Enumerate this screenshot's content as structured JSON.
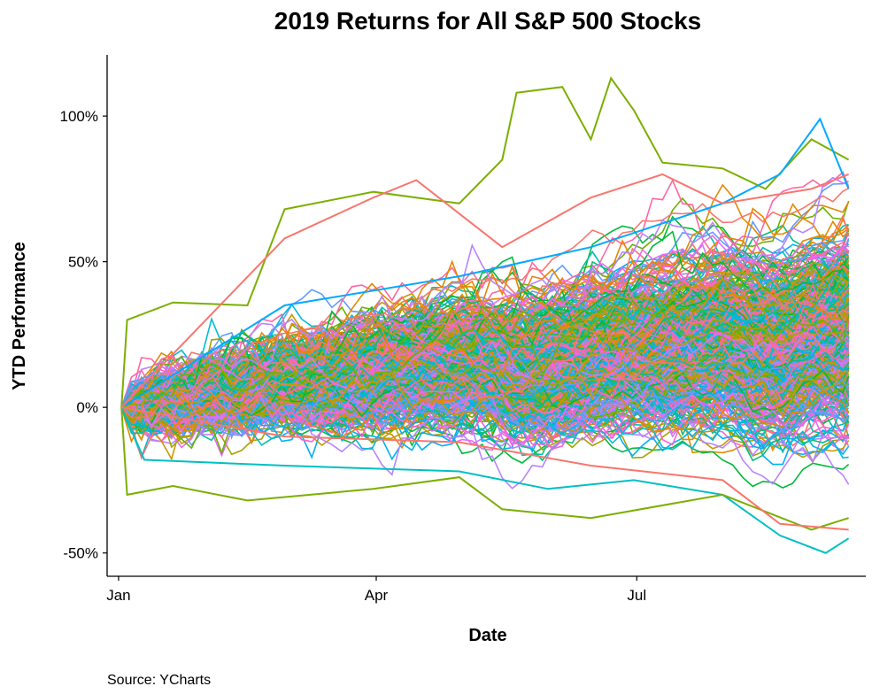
{
  "chart_data": {
    "type": "line",
    "title": "2019 Returns for All S&P 500 Stocks",
    "xlabel": "Date",
    "ylabel": "YTD Performance",
    "x_ticks": [
      "Jan",
      "Apr",
      "Jul"
    ],
    "x_tick_dates": [
      "2019-01-01",
      "2019-04-01",
      "2019-07-01"
    ],
    "y_ticks": [
      "-50%",
      "0%",
      "50%",
      "100%"
    ],
    "y_tick_values": [
      -50,
      0,
      50,
      100
    ],
    "ylim": [
      -58,
      121
    ],
    "xlim": [
      "2018-12-28",
      "2019-09-19"
    ],
    "x_data_end": "2019-09-13",
    "grid": false,
    "legend": "none",
    "n_series_shown": 500,
    "highlight_series": [
      {
        "color": "#7CAE00",
        "points": [
          [
            "2019-01-02",
            0
          ],
          [
            "2019-01-04",
            30
          ],
          [
            "2019-01-20",
            36
          ],
          [
            "2019-02-15",
            35
          ],
          [
            "2019-02-28",
            68
          ],
          [
            "2019-03-31",
            74
          ],
          [
            "2019-04-30",
            70
          ],
          [
            "2019-05-15",
            85
          ],
          [
            "2019-05-20",
            108
          ],
          [
            "2019-06-05",
            110
          ],
          [
            "2019-06-15",
            92
          ],
          [
            "2019-06-22",
            113
          ],
          [
            "2019-06-30",
            102
          ],
          [
            "2019-07-10",
            84
          ],
          [
            "2019-07-31",
            82
          ],
          [
            "2019-08-15",
            75
          ],
          [
            "2019-08-31",
            92
          ],
          [
            "2019-09-13",
            85
          ]
        ]
      },
      {
        "color": "#00A9FF",
        "points": [
          [
            "2019-01-02",
            0
          ],
          [
            "2019-02-28",
            35
          ],
          [
            "2019-04-30",
            45
          ],
          [
            "2019-06-15",
            55
          ],
          [
            "2019-07-31",
            70
          ],
          [
            "2019-08-20",
            80
          ],
          [
            "2019-09-03",
            99
          ],
          [
            "2019-09-13",
            75
          ]
        ]
      },
      {
        "color": "#F8766D",
        "points": [
          [
            "2019-01-02",
            0
          ],
          [
            "2019-02-28",
            58
          ],
          [
            "2019-03-31",
            72
          ],
          [
            "2019-04-15",
            78
          ],
          [
            "2019-05-15",
            55
          ],
          [
            "2019-06-15",
            72
          ],
          [
            "2019-07-10",
            80
          ],
          [
            "2019-07-31",
            70
          ],
          [
            "2019-08-31",
            75
          ],
          [
            "2019-09-13",
            80
          ]
        ]
      },
      {
        "color": "#00BFC4",
        "points": [
          [
            "2019-01-02",
            0
          ],
          [
            "2019-01-10",
            -18
          ],
          [
            "2019-02-28",
            -20
          ],
          [
            "2019-04-30",
            -22
          ],
          [
            "2019-05-31",
            -28
          ],
          [
            "2019-06-30",
            -25
          ],
          [
            "2019-07-31",
            -30
          ],
          [
            "2019-08-20",
            -44
          ],
          [
            "2019-09-05",
            -50
          ],
          [
            "2019-09-13",
            -45
          ]
        ]
      },
      {
        "color": "#7CAE00",
        "points": [
          [
            "2019-01-02",
            0
          ],
          [
            "2019-01-04",
            -30
          ],
          [
            "2019-01-20",
            -27
          ],
          [
            "2019-02-15",
            -32
          ],
          [
            "2019-03-31",
            -28
          ],
          [
            "2019-04-30",
            -24
          ],
          [
            "2019-05-15",
            -35
          ],
          [
            "2019-06-15",
            -38
          ],
          [
            "2019-07-31",
            -30
          ],
          [
            "2019-08-31",
            -42
          ],
          [
            "2019-09-13",
            -38
          ]
        ]
      },
      {
        "color": "#F8766D",
        "points": [
          [
            "2019-01-02",
            0
          ],
          [
            "2019-02-28",
            -10
          ],
          [
            "2019-04-30",
            -12
          ],
          [
            "2019-06-15",
            -20
          ],
          [
            "2019-07-31",
            -25
          ],
          [
            "2019-08-20",
            -40
          ],
          [
            "2019-09-13",
            -42
          ]
        ]
      }
    ],
    "palette": [
      "#F8766D",
      "#E58700",
      "#C99800",
      "#A3A500",
      "#6BB100",
      "#00BA38",
      "#00BF7D",
      "#00C0AF",
      "#00BCD8",
      "#00B0F6",
      "#619CFF",
      "#B983FF",
      "#E76BF3",
      "#FD61D1",
      "#FF67A4"
    ],
    "source": "Source: YCharts"
  }
}
